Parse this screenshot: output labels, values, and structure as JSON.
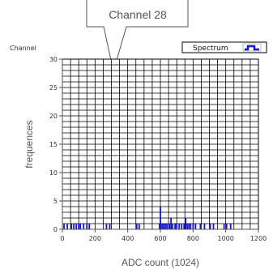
{
  "callout": {
    "label": "Channel 28"
  },
  "plot": {
    "top_label": "Channel"
  },
  "legend": {
    "label": "Spectrum"
  },
  "colors": {
    "series": "#1414cc",
    "grid": "#000000",
    "axis": "#555555"
  },
  "chart_data": {
    "type": "bar",
    "xlabel": "ADC count (1024)",
    "ylabel": "frequences",
    "xlim": [
      0,
      1200
    ],
    "ylim": [
      0,
      30
    ],
    "xticks": [
      0,
      200,
      400,
      600,
      800,
      1000,
      1200
    ],
    "yticks": [
      0,
      5,
      10,
      15,
      20,
      25,
      30
    ],
    "grid": true,
    "legend_position": "top-right",
    "series": [
      {
        "name": "Spectrum",
        "x": [
          10,
          30,
          55,
          70,
          85,
          100,
          110,
          130,
          150,
          165,
          270,
          290,
          455,
          470,
          595,
          600,
          610,
          620,
          630,
          640,
          655,
          665,
          675,
          690,
          700,
          715,
          730,
          745,
          755,
          765,
          775,
          785,
          800,
          815,
          845,
          870,
          905,
          925,
          990,
          1005,
          1030
        ],
        "values": [
          1,
          1,
          1,
          1,
          1,
          1,
          1,
          1,
          1,
          1,
          1,
          1,
          1,
          1,
          1,
          4,
          1,
          1,
          1,
          1,
          1,
          2,
          1,
          1,
          1,
          1,
          1,
          1,
          2,
          1,
          1,
          1,
          1,
          1,
          1,
          1,
          1,
          1,
          1,
          1,
          1
        ]
      }
    ]
  }
}
